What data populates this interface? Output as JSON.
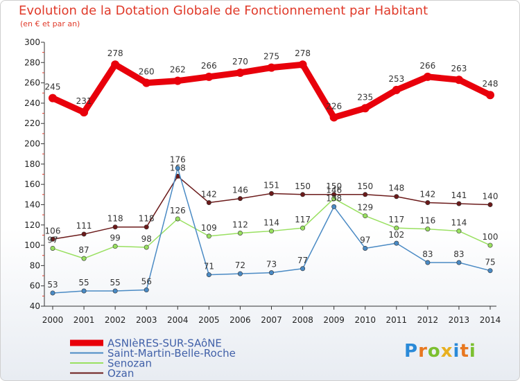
{
  "chart_data": {
    "type": "line",
    "title": "Evolution de la Dotation Globale de Fonctionnement par Habitant",
    "subtitle": "(en € et par an)",
    "x": [
      "2000",
      "2001",
      "2002",
      "2003",
      "2004",
      "2005",
      "2006",
      "2007",
      "2008",
      "2009",
      "2010",
      "2011",
      "2012",
      "2013",
      "2014"
    ],
    "ylim": [
      40,
      300
    ],
    "yticks": [
      40,
      60,
      80,
      100,
      120,
      140,
      160,
      180,
      200,
      220,
      240,
      260,
      280,
      300
    ],
    "grid": false,
    "legend_position": "bottom-left",
    "series": [
      {
        "name": "ASNIèRES-SUR-SAôNE",
        "color": "#e8000b",
        "values": [
          245,
          231,
          278,
          260,
          262,
          266,
          270,
          275,
          278,
          226,
          235,
          253,
          266,
          263,
          248
        ]
      },
      {
        "name": "Saint-Martin-Belle-Roche",
        "color": "#4a8ac4",
        "values": [
          53,
          55,
          55,
          56,
          176,
          71,
          72,
          73,
          77,
          138,
          97,
          102,
          83,
          83,
          75
        ]
      },
      {
        "name": "Senozan",
        "color": "#99e060",
        "values": [
          97,
          87,
          99,
          98,
          126,
          109,
          112,
          114,
          117,
          146,
          129,
          117,
          116,
          114,
          100
        ]
      },
      {
        "name": "Ozan",
        "color": "#6b1a1a",
        "values": [
          106,
          111,
          118,
          118,
          168,
          142,
          146,
          151,
          150,
          150,
          150,
          148,
          142,
          141,
          140
        ]
      }
    ]
  },
  "logo": {
    "letters": [
      "P",
      "r",
      "o",
      "x",
      "i",
      "t",
      "i"
    ],
    "colors": [
      "#2a8ad8",
      "#e87820",
      "#7cc030",
      "#e8b020",
      "#2a8ad8",
      "#e87820",
      "#7cc030"
    ]
  }
}
